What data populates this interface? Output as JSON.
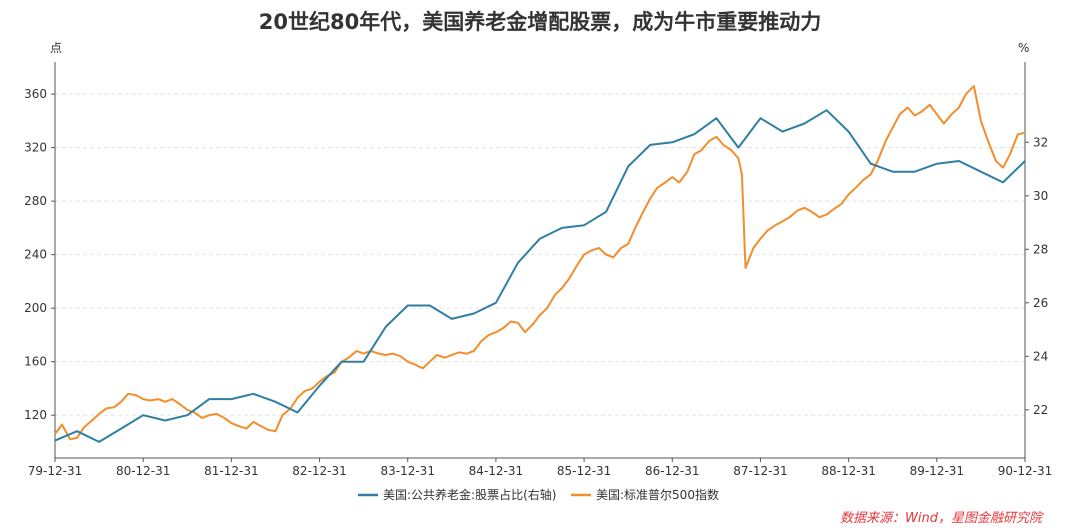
{
  "title": "20世纪80年代，美国养老金增配股票，成为牛市重要推动力",
  "source": "数据来源：Wind，星图金融研究院",
  "chart_data": {
    "type": "line",
    "title": "20世纪80年代，美国养老金增配股票，成为牛市重要推动力",
    "left_axis": {
      "unit": "点",
      "ylim": [
        88,
        384
      ],
      "ticks": [
        120,
        160,
        200,
        240,
        280,
        320,
        360
      ]
    },
    "right_axis": {
      "unit": "%",
      "ylim": [
        20.2,
        35.0
      ],
      "ticks": [
        22,
        24,
        26,
        28,
        30,
        32
      ]
    },
    "x_axis": {
      "labels": [
        "79-12-31",
        "80-12-31",
        "81-12-31",
        "82-12-31",
        "83-12-31",
        "84-12-31",
        "85-12-31",
        "86-12-31",
        "87-12-31",
        "88-12-31",
        "89-12-31",
        "90-12-31"
      ],
      "xlim": [
        1980.0,
        1991.0
      ]
    },
    "grid": true,
    "legend_position": "bottom",
    "series": [
      {
        "name": "美国:公共养老金:股票占比(右轴)",
        "axis": "right",
        "color": "#2e7fa3",
        "x": [
          1980.0,
          1980.25,
          1980.5,
          1980.75,
          1981.0,
          1981.25,
          1981.5,
          1981.75,
          1982.0,
          1982.25,
          1982.5,
          1982.75,
          1983.0,
          1983.25,
          1983.5,
          1983.75,
          1984.0,
          1984.25,
          1984.5,
          1984.75,
          1985.0,
          1985.25,
          1985.5,
          1985.75,
          1986.0,
          1986.25,
          1986.5,
          1986.75,
          1987.0,
          1987.25,
          1987.5,
          1987.75,
          1988.0,
          1988.25,
          1988.5,
          1988.75,
          1989.0,
          1989.25,
          1989.5,
          1989.75,
          1990.0,
          1990.25,
          1990.5,
          1990.75,
          1991.0
        ],
        "y": [
          20.85,
          21.2,
          20.8,
          21.3,
          21.8,
          21.6,
          21.8,
          22.4,
          22.4,
          22.6,
          22.3,
          21.9,
          22.9,
          23.8,
          23.8,
          25.1,
          25.9,
          25.9,
          25.4,
          25.6,
          26.0,
          27.5,
          28.4,
          28.8,
          28.9,
          29.4,
          31.1,
          31.9,
          32.0,
          32.3,
          32.9,
          31.8,
          32.9,
          32.4,
          32.7,
          33.2,
          32.4,
          31.2,
          30.9,
          30.9,
          31.2,
          31.3,
          30.9,
          30.5,
          31.3
        ]
      },
      {
        "name": "美国:标准普尔500指数",
        "axis": "left",
        "color": "#f28e2b",
        "x": [
          1980.0,
          1980.08,
          1980.17,
          1980.25,
          1980.33,
          1980.42,
          1980.5,
          1980.58,
          1980.67,
          1980.75,
          1980.83,
          1980.92,
          1981.0,
          1981.08,
          1981.17,
          1981.25,
          1981.33,
          1981.42,
          1981.5,
          1981.58,
          1981.67,
          1981.75,
          1981.83,
          1981.92,
          1982.0,
          1982.08,
          1982.17,
          1982.25,
          1982.33,
          1982.42,
          1982.5,
          1982.58,
          1982.67,
          1982.75,
          1982.83,
          1982.92,
          1983.0,
          1983.08,
          1983.17,
          1983.25,
          1983.33,
          1983.42,
          1983.5,
          1983.58,
          1983.67,
          1983.75,
          1983.83,
          1983.92,
          1984.0,
          1984.08,
          1984.17,
          1984.25,
          1984.33,
          1984.42,
          1984.5,
          1984.58,
          1984.67,
          1984.75,
          1984.83,
          1984.92,
          1985.0,
          1985.08,
          1985.17,
          1985.25,
          1985.33,
          1985.42,
          1985.5,
          1985.58,
          1985.67,
          1985.75,
          1985.83,
          1985.92,
          1986.0,
          1986.08,
          1986.17,
          1986.25,
          1986.33,
          1986.42,
          1986.5,
          1986.58,
          1986.67,
          1986.75,
          1986.83,
          1986.92,
          1987.0,
          1987.08,
          1987.17,
          1987.25,
          1987.33,
          1987.42,
          1987.5,
          1987.58,
          1987.67,
          1987.75,
          1987.79,
          1987.83,
          1987.92,
          1988.0,
          1988.08,
          1988.17,
          1988.25,
          1988.33,
          1988.42,
          1988.5,
          1988.58,
          1988.67,
          1988.75,
          1988.83,
          1988.92,
          1989.0,
          1989.08,
          1989.17,
          1989.25,
          1989.33,
          1989.42,
          1989.5,
          1989.58,
          1989.67,
          1989.75,
          1989.83,
          1989.92,
          1990.0,
          1990.08,
          1990.17,
          1990.25,
          1990.33,
          1990.42,
          1990.5,
          1990.58,
          1990.67,
          1990.75,
          1990.83,
          1990.92,
          1991.0
        ],
        "y": [
          106,
          113,
          102,
          103,
          111,
          116,
          121,
          125,
          126,
          130,
          136,
          135,
          132,
          131,
          132,
          130,
          132,
          128,
          124,
          122,
          118,
          120,
          121,
          118,
          114,
          112,
          110,
          115,
          112,
          109,
          108,
          120,
          125,
          133,
          138,
          140,
          145,
          149,
          152,
          160,
          163,
          168,
          166,
          168,
          166,
          165,
          166,
          164,
          160,
          158,
          155,
          160,
          165,
          163,
          165,
          167,
          166,
          168,
          175,
          180,
          182,
          185,
          190,
          189,
          182,
          188,
          195,
          200,
          210,
          215,
          222,
          232,
          240,
          243,
          245,
          240,
          238,
          245,
          248,
          260,
          272,
          282,
          290,
          294,
          298,
          294,
          302,
          315,
          318,
          325,
          328,
          322,
          318,
          312,
          300,
          230,
          245,
          252,
          258,
          262,
          265,
          268,
          273,
          275,
          272,
          268,
          270,
          274,
          278,
          285,
          290,
          296,
          300,
          310,
          325,
          335,
          345,
          350,
          344,
          347,
          352,
          345,
          338,
          345,
          350,
          360,
          366,
          340,
          325,
          310,
          305,
          315,
          330,
          331
        ]
      }
    ]
  }
}
